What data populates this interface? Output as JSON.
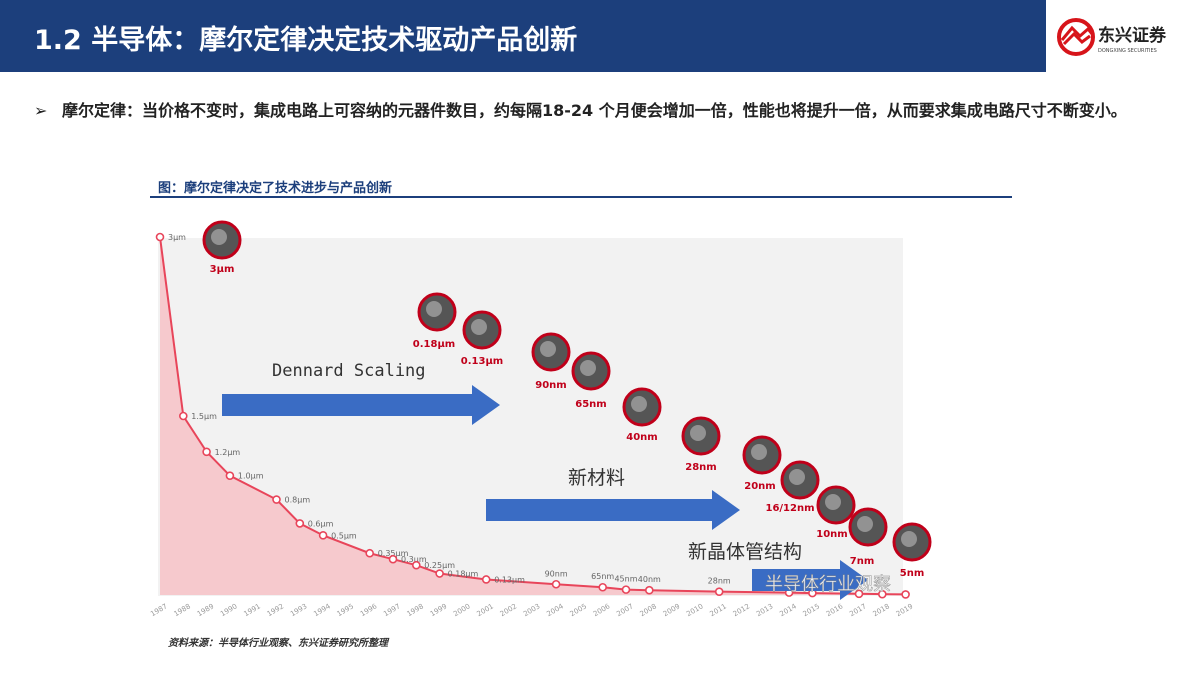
{
  "header": {
    "title": "1.2 半导体：摩尔定律决定技术驱动产品创新",
    "logo_text": "东兴证券",
    "logo_subtext": "DONGXING SECURITIES"
  },
  "bullet": {
    "marker": "➢",
    "text": "摩尔定律：当价格不变时，集成电路上可容纳的元器件数目，约每隔18-24 个月便会增加一倍，性能也将提升一倍，从而要求集成电路尺寸不断变小。"
  },
  "figure": {
    "title": "图：摩尔定律决定了技术进步与产品创新",
    "source": "资料来源：半导体行业观察、东兴证券研究所整理",
    "watermark": "半导体行业观察"
  },
  "colors": {
    "header": "#1c3f7c",
    "line": "#e8455a",
    "area": "#f6c9cd",
    "arrow": "#3a6cc4",
    "label_red": "#c0001a"
  },
  "chart_data": {
    "type": "area",
    "x_ticks": [
      "1987",
      "1988",
      "1989",
      "1990",
      "1991",
      "1992",
      "1993",
      "1994",
      "1995",
      "1996",
      "1997",
      "1998",
      "1999",
      "2000",
      "2001",
      "2002",
      "2003",
      "2004",
      "2005",
      "2006",
      "2007",
      "2008",
      "2009",
      "2010",
      "2011",
      "2012",
      "2013",
      "2014",
      "2015",
      "2016",
      "2017",
      "2018",
      "2019"
    ],
    "points": [
      {
        "x": 1987,
        "y": 3,
        "label": "3μm"
      },
      {
        "x": 1988,
        "y": 1.5,
        "label": "1.5μm"
      },
      {
        "x": 1989,
        "y": 1.2,
        "label": "1.2μm"
      },
      {
        "x": 1990,
        "y": 1.0,
        "label": "1.0μm"
      },
      {
        "x": 1992,
        "y": 0.8,
        "label": "0.8μm"
      },
      {
        "x": 1993,
        "y": 0.6,
        "label": "0.6μm"
      },
      {
        "x": 1994,
        "y": 0.5,
        "label": "0.5μm"
      },
      {
        "x": 1996,
        "y": 0.35,
        "label": "0.35μm"
      },
      {
        "x": 1997,
        "y": 0.3,
        "label": "0.3μm"
      },
      {
        "x": 1998,
        "y": 0.25,
        "label": "0.25μm"
      },
      {
        "x": 1999,
        "y": 0.18,
        "label": "0.18μm"
      },
      {
        "x": 2001,
        "y": 0.13,
        "label": "0.13μm"
      },
      {
        "x": 2004,
        "y": 0.09,
        "label": "90nm"
      },
      {
        "x": 2006,
        "y": 0.065,
        "label": "65nm"
      },
      {
        "x": 2007,
        "y": 0.045,
        "label": "45nm"
      },
      {
        "x": 2008,
        "y": 0.04,
        "label": "40nm"
      },
      {
        "x": 2011,
        "y": 0.028,
        "label": "28nm"
      },
      {
        "x": 2014,
        "y": 0.02,
        "label": ""
      },
      {
        "x": 2015,
        "y": 0.016,
        "label": ""
      },
      {
        "x": 2017,
        "y": 0.01,
        "label": ""
      },
      {
        "x": 2018,
        "y": 0.007,
        "label": ""
      },
      {
        "x": 2019,
        "y": 0.005,
        "label": ""
      }
    ],
    "ylim": [
      0,
      3
    ],
    "nodes": [
      "3μm",
      "0.18μm",
      "0.13μm",
      "90nm",
      "65nm",
      "40nm",
      "28nm",
      "20nm",
      "16/12nm",
      "10nm",
      "7nm",
      "5nm"
    ],
    "annotations": [
      "Dennard Scaling",
      "新材料",
      "新晶体管结构"
    ]
  }
}
